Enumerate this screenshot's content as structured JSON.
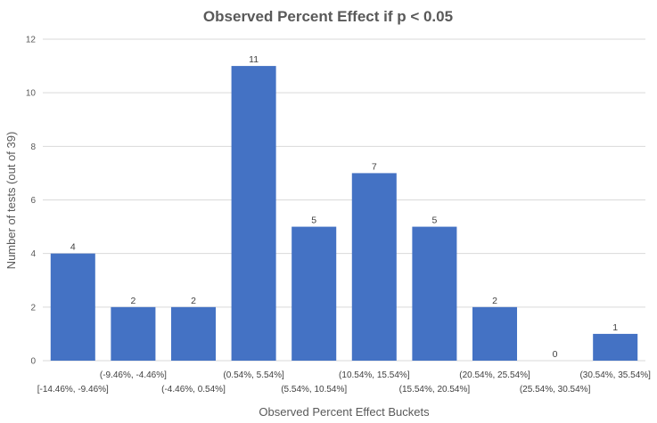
{
  "chart_data": {
    "type": "bar",
    "title": "Observed Percent Effect if p < 0.05",
    "xlabel": "Observed Percent Effect Buckets",
    "ylabel": "Number of tests (out of 39)",
    "ylim": [
      0,
      12
    ],
    "yticks": [
      0,
      2,
      4,
      6,
      8,
      10,
      12
    ],
    "grid": true,
    "legend": "none",
    "categories": [
      "[-14.46%, -9.46%]",
      "(-9.46%, -4.46%]",
      "(-4.46%, 0.54%]",
      "(0.54%, 5.54%]",
      "(5.54%, 10.54%]",
      "(10.54%, 15.54%]",
      "(15.54%, 20.54%]",
      "(20.54%, 25.54%]",
      "(25.54%, 30.54%]",
      "(30.54%, 35.54%]"
    ],
    "values": [
      4,
      2,
      2,
      11,
      5,
      7,
      5,
      2,
      0,
      1
    ],
    "bar_color": "#4472C4",
    "gridline_color": "#D9D9D9"
  }
}
